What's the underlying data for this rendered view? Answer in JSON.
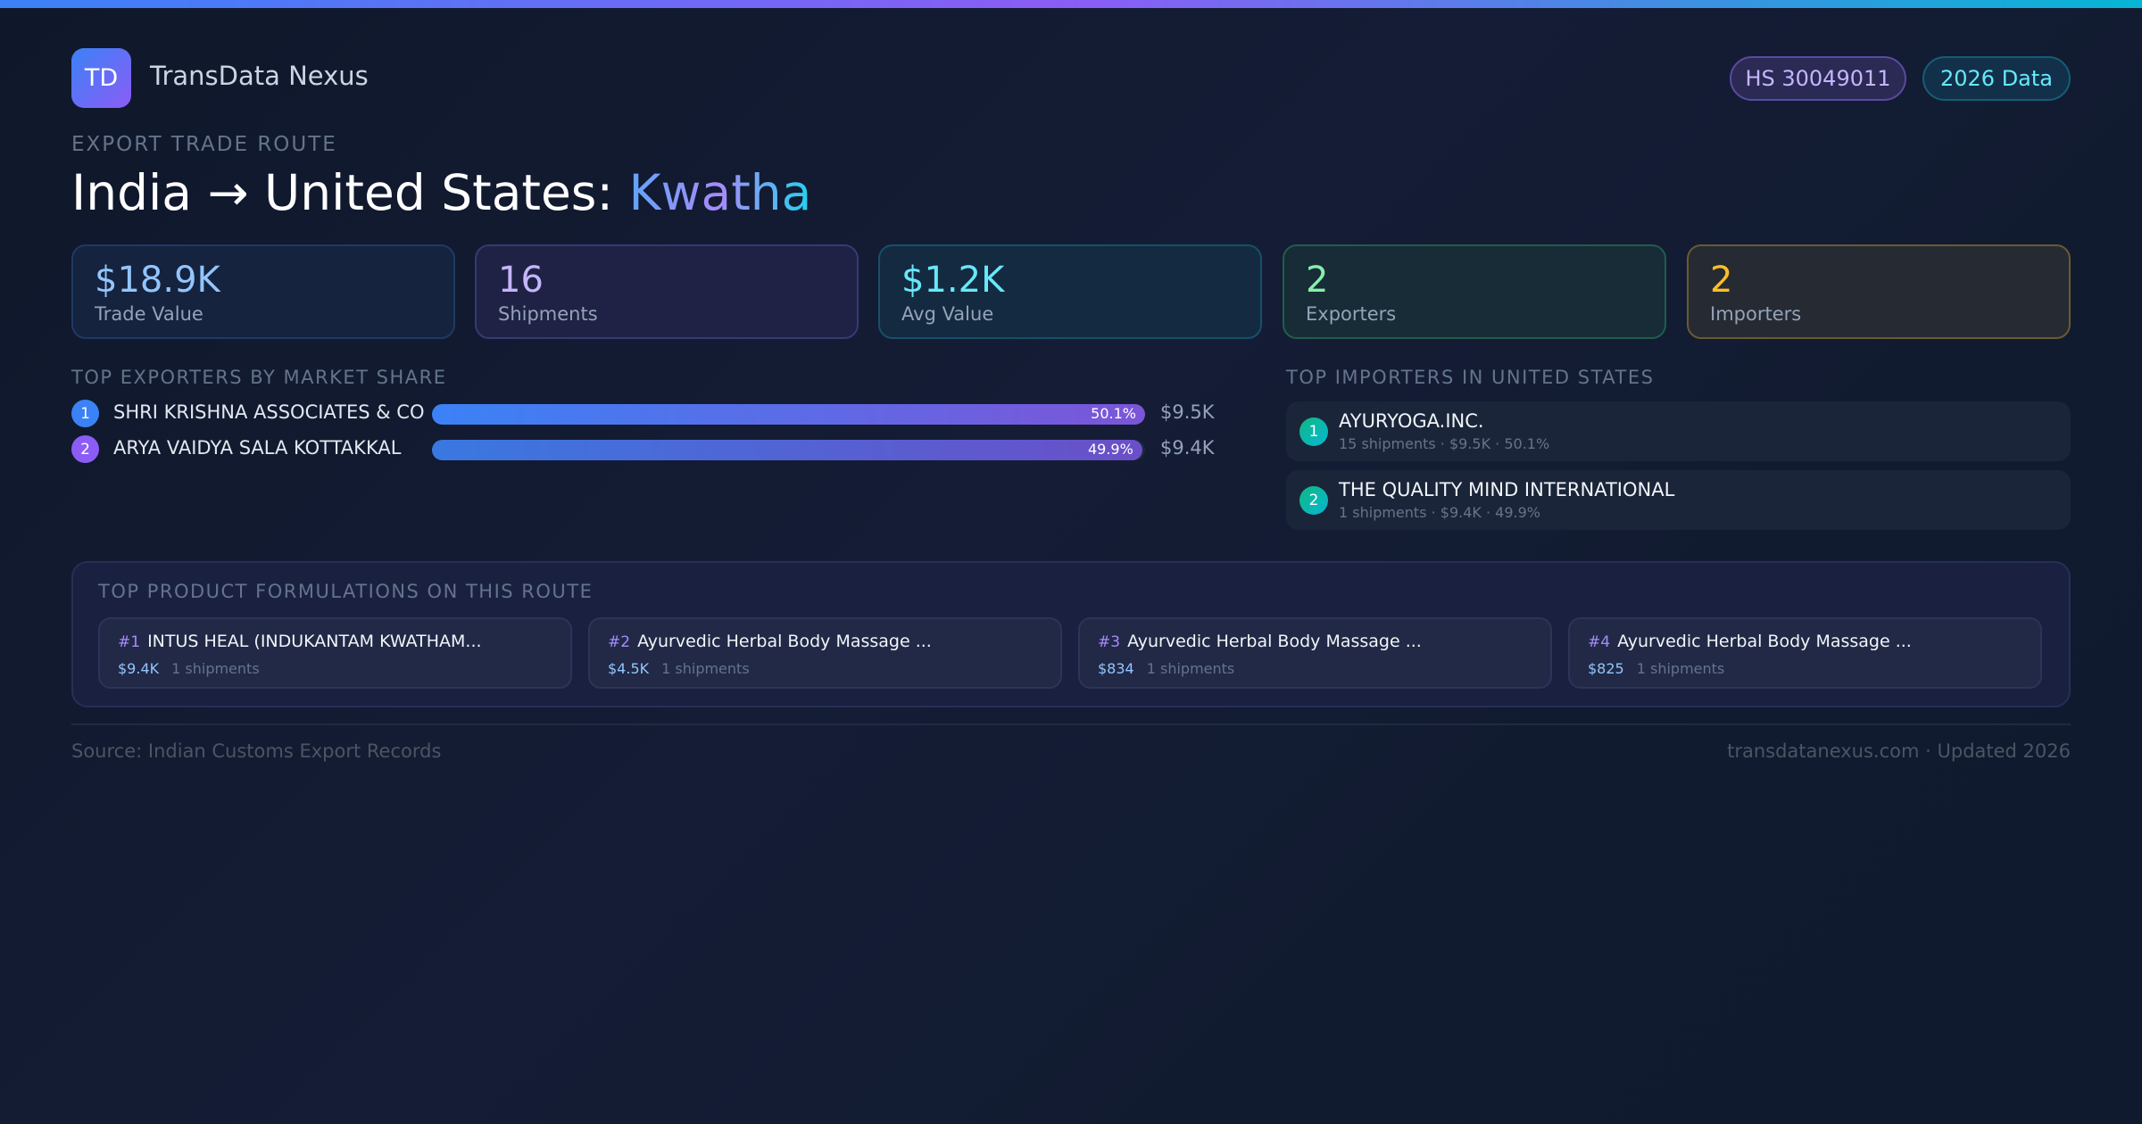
{
  "brand": {
    "logo_text": "TD",
    "name": "TransData Nexus"
  },
  "badges": {
    "hs": "HS 30049011",
    "year": "2026 Data"
  },
  "header": {
    "eyebrow": "EXPORT TRADE ROUTE",
    "title_prefix": "India → United States: ",
    "title_highlight": "Kwatha"
  },
  "stats": [
    {
      "value": "$18.9K",
      "label": "Trade Value",
      "color": "#93c5fd"
    },
    {
      "value": "16",
      "label": "Shipments",
      "color": "#c4b5fd"
    },
    {
      "value": "$1.2K",
      "label": "Avg Value",
      "color": "#67e8f9"
    },
    {
      "value": "2",
      "label": "Exporters",
      "color": "#86efac"
    },
    {
      "value": "2",
      "label": "Importers",
      "color": "#fbbf24"
    }
  ],
  "exporters": {
    "title": "TOP EXPORTERS BY MARKET SHARE",
    "items": [
      {
        "rank": "1",
        "name": "SHRI KRISHNA ASSOCIATES & CO",
        "share": 50.1,
        "share_label": "50.1%",
        "value": "$9.5K"
      },
      {
        "rank": "2",
        "name": "ARYA VAIDYA SALA KOTTAKKAL",
        "share": 49.9,
        "share_label": "49.9%",
        "value": "$9.4K"
      }
    ]
  },
  "importers": {
    "title": "TOP IMPORTERS IN UNITED STATES",
    "items": [
      {
        "rank": "1",
        "name": "AYURYOGA.INC.",
        "detail": "15 shipments · $9.5K · 50.1%"
      },
      {
        "rank": "2",
        "name": "THE QUALITY MIND INTERNATIONAL",
        "detail": "1 shipments · $9.4K · 49.9%"
      }
    ]
  },
  "formulations": {
    "title": "TOP PRODUCT FORMULATIONS ON THIS ROUTE",
    "items": [
      {
        "rank": "#1",
        "name": "INTUS HEAL (INDUKANTAM KWATHAM...",
        "value": "$9.4K",
        "shipments": "1 shipments"
      },
      {
        "rank": "#2",
        "name": "Ayurvedic Herbal Body Massage ...",
        "value": "$4.5K",
        "shipments": "1 shipments"
      },
      {
        "rank": "#3",
        "name": "Ayurvedic Herbal Body Massage ...",
        "value": "$834",
        "shipments": "1 shipments"
      },
      {
        "rank": "#4",
        "name": "Ayurvedic Herbal Body Massage ...",
        "value": "$825",
        "shipments": "1 shipments"
      }
    ]
  },
  "footer": {
    "source": "Source: Indian Customs Export Records",
    "site": "transdatanexus.com · Updated 2026"
  }
}
